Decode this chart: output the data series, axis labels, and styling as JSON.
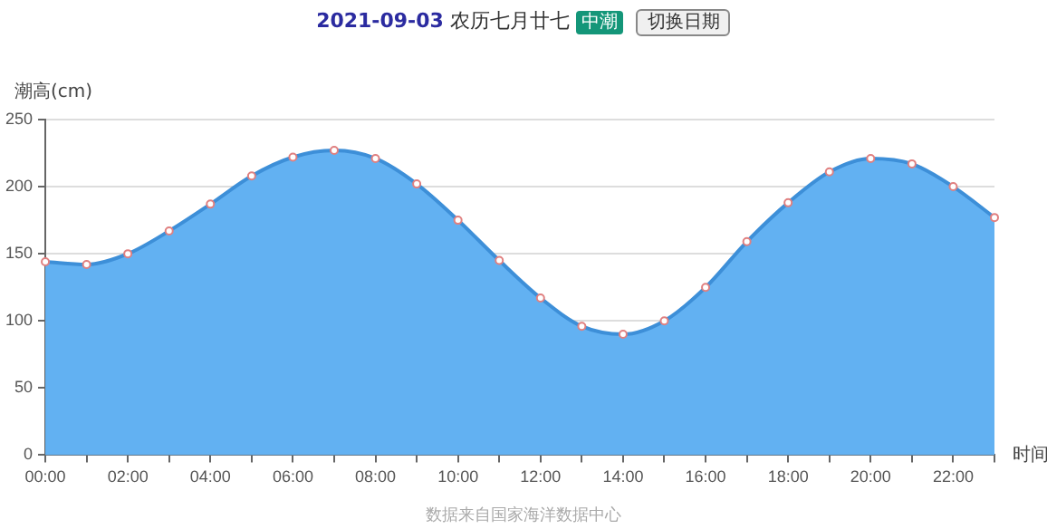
{
  "chart_data": {
    "type": "area",
    "title": "2021-09-03",
    "subtitle": "农历七月廿七",
    "xlabel": "时间",
    "ylabel": "潮高(cm)",
    "annotations": [
      "中潮",
      "切换日期",
      "数据来自国家海洋数据中心"
    ],
    "categories": [
      "00:00",
      null,
      "02:00",
      null,
      "04:00",
      null,
      "06:00",
      null,
      "08:00",
      null,
      "10:00",
      null,
      "12:00",
      null,
      "14:00",
      null,
      "16:00",
      null,
      "18:00",
      null,
      "20:00",
      null,
      "22:00",
      null
    ],
    "series": [
      {
        "color": "#3d8fd8",
        "values": [
          144,
          142,
          150,
          167,
          187,
          208,
          222,
          227,
          221,
          202,
          175,
          145,
          117,
          96,
          90,
          100,
          125,
          159,
          188,
          211,
          221,
          217,
          200,
          177
        ]
      }
    ],
    "ylim": [
      0,
      250
    ],
    "yticks": [
      0,
      50,
      100,
      150,
      200,
      250
    ],
    "grid": "y",
    "marker": "circle",
    "legend": false
  }
}
